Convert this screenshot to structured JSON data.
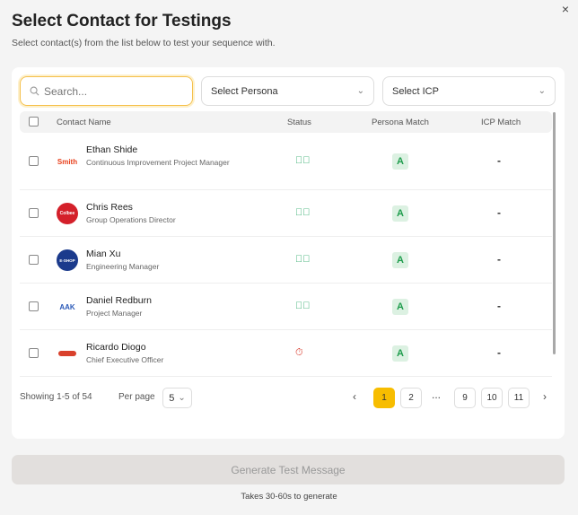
{
  "dialog": {
    "title": "Select Contact for Testings",
    "subtitle": "Select contact(s) from the list below to test your sequence with.",
    "close": "×"
  },
  "filters": {
    "search_placeholder": "Search...",
    "persona": "Select Persona",
    "icp": "Select ICP"
  },
  "columns": {
    "name": "Contact Name",
    "status": "Status",
    "persona": "Persona Match",
    "icp": "ICP Match"
  },
  "contacts": [
    {
      "name": "Ethan Shide",
      "title": "Continuous Improvement Project Manager",
      "status": "done",
      "persona": "A",
      "icp": "-",
      "logo": "Smith"
    },
    {
      "name": "Chris Rees",
      "title": "Group Operations Director",
      "status": "done",
      "persona": "A",
      "icp": "-",
      "logo": "Colbee"
    },
    {
      "name": "Mian Xu",
      "title": "Engineering Manager",
      "status": "done",
      "persona": "A",
      "icp": "-",
      "logo": "E-SHOP"
    },
    {
      "name": "Daniel Redburn",
      "title": "Project Manager",
      "status": "done",
      "persona": "A",
      "icp": "-",
      "logo": "AAK"
    },
    {
      "name": "Ricardo Diogo",
      "title": "Chief Executive Officer",
      "status": "pending",
      "persona": "A",
      "icp": "-",
      "logo": ""
    }
  ],
  "pagination": {
    "showing": "Showing 1-5 of 54",
    "per_page_label": "Per page",
    "per_page": "5",
    "pages": [
      "1",
      "2",
      "...",
      "9",
      "10",
      "11"
    ],
    "current": "1"
  },
  "colors": {
    "accent": "#f7bd00",
    "done": "#2eaa6a",
    "pending": "#d83a2c"
  },
  "footer": {
    "button": "Generate Test Message",
    "note": "Takes 30-60s to generate"
  }
}
